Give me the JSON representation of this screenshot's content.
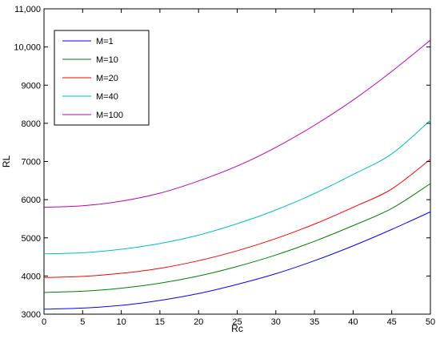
{
  "chart_data": {
    "type": "line",
    "title": "",
    "xlabel": "Rc",
    "ylabel": "RL",
    "xlim": [
      0,
      50
    ],
    "ylim": [
      3000,
      11000
    ],
    "xticks": [
      0,
      5,
      10,
      15,
      20,
      25,
      30,
      35,
      40,
      45,
      50
    ],
    "yticks": [
      3000,
      4000,
      5000,
      6000,
      7000,
      8000,
      9000,
      10000,
      11000
    ],
    "ytick_labels": [
      "3000",
      "4000",
      "5000",
      "6000",
      "7000",
      "8000",
      "9000",
      "10,000",
      "11,000"
    ],
    "xtick_labels": [
      "0",
      "5",
      "10",
      "15",
      "20",
      "25",
      "30",
      "35",
      "40",
      "45",
      "50"
    ],
    "grid": false,
    "legend_position": "top-left",
    "x": [
      0,
      5,
      10,
      15,
      20,
      25,
      30,
      35,
      40,
      45,
      50
    ],
    "series": [
      {
        "name": "M=1",
        "color": "#0000ff",
        "values": [
          3130,
          3160,
          3230,
          3360,
          3540,
          3780,
          4060,
          4400,
          4790,
          5220,
          5680
        ]
      },
      {
        "name": "M=10",
        "color": "#008000",
        "values": [
          3570,
          3600,
          3680,
          3810,
          4000,
          4250,
          4550,
          4910,
          5320,
          5770,
          6420
        ]
      },
      {
        "name": "M=20",
        "color": "#ff0000",
        "values": [
          3960,
          3990,
          4070,
          4200,
          4400,
          4660,
          4980,
          5360,
          5800,
          6280,
          7060
        ]
      },
      {
        "name": "M=40",
        "color": "#00bfbf",
        "values": [
          4580,
          4610,
          4700,
          4850,
          5070,
          5370,
          5730,
          6160,
          6660,
          7200,
          8080
        ]
      },
      {
        "name": "M=100",
        "color": "#bf00bf",
        "values": [
          5800,
          5840,
          5960,
          6170,
          6490,
          6880,
          7370,
          7950,
          8610,
          9360,
          10180
        ]
      }
    ]
  }
}
